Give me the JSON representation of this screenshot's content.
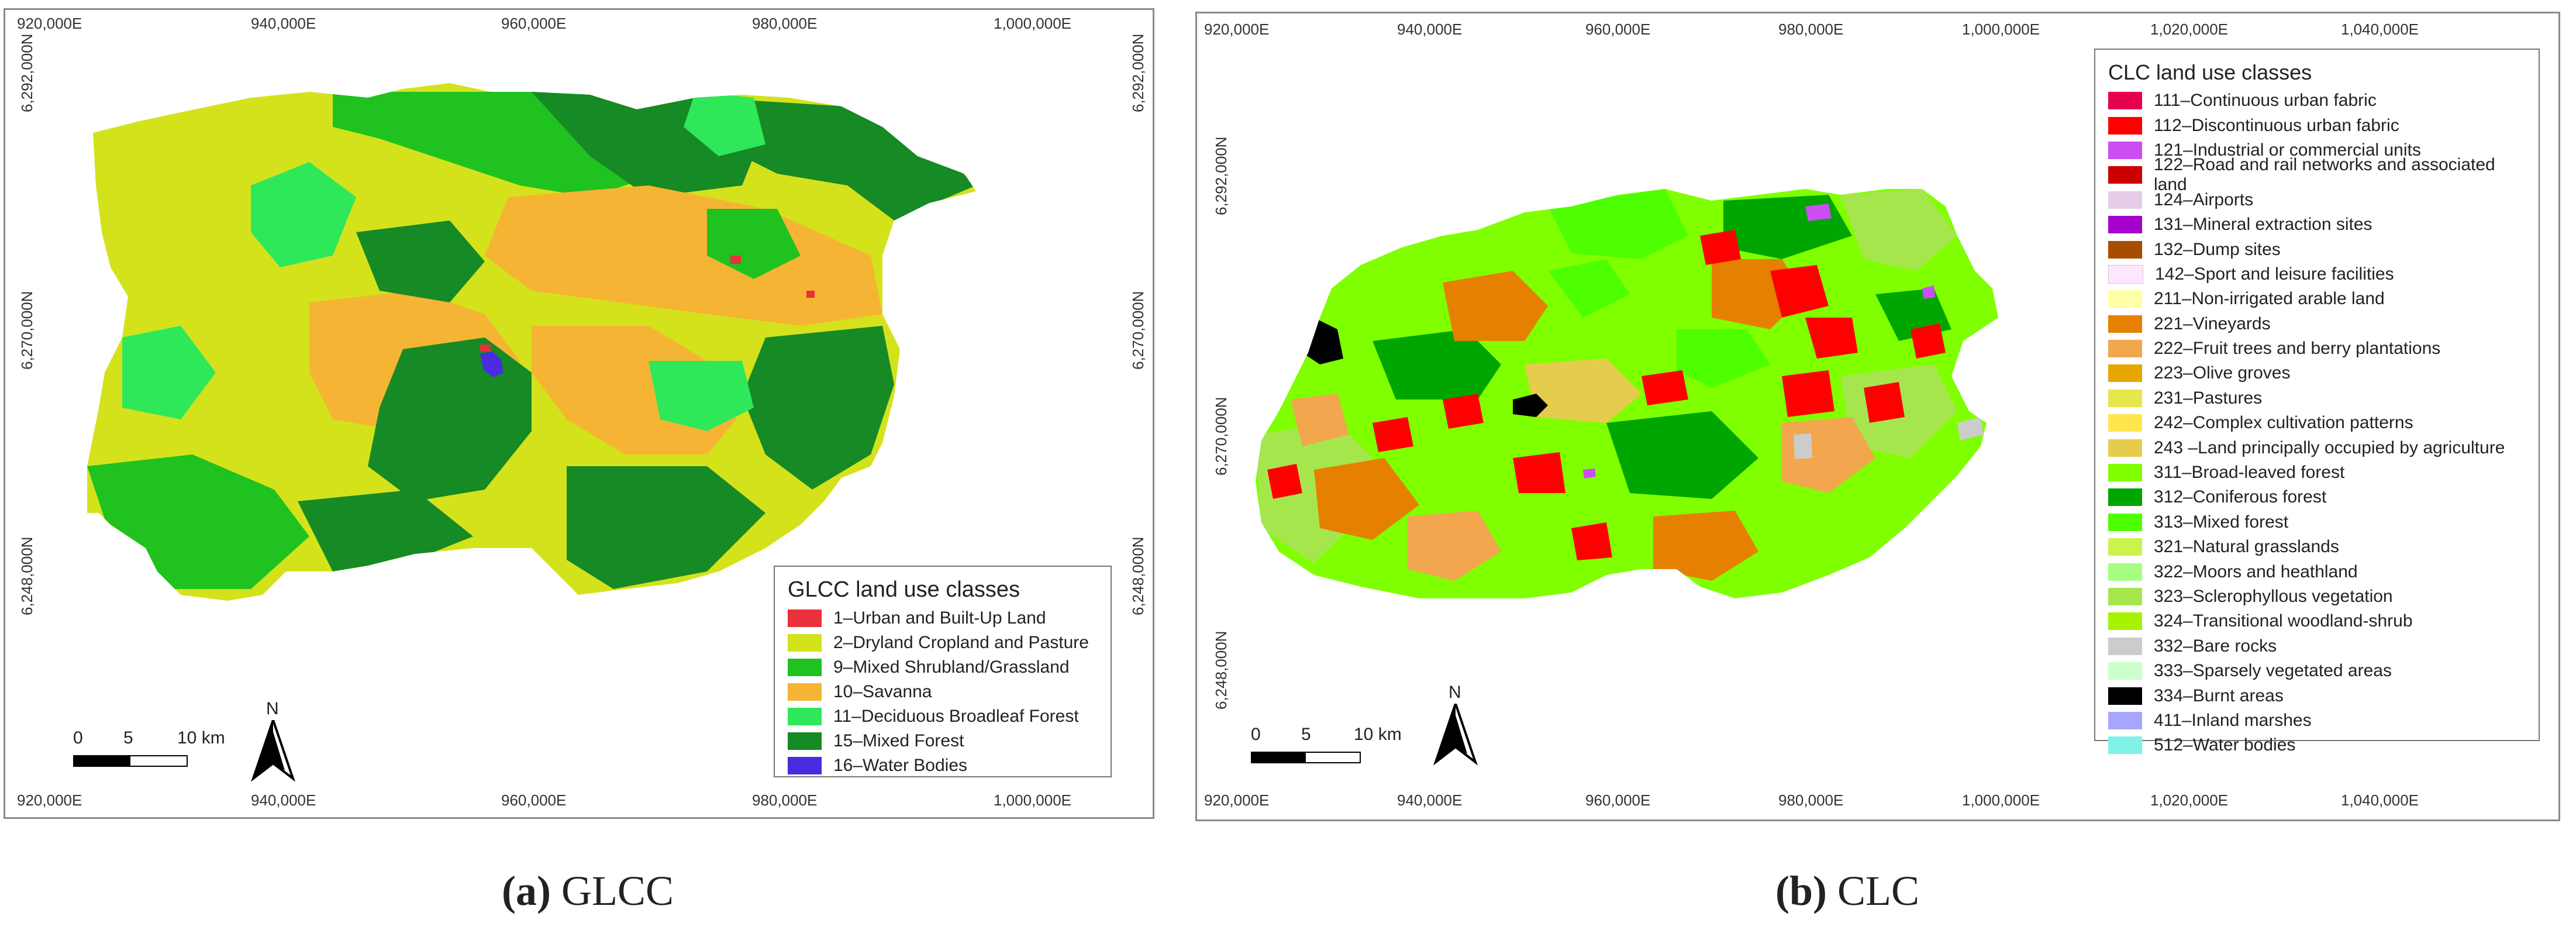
{
  "panel_a": {
    "x_ticks": [
      "920,000E",
      "940,000E",
      "960,000E",
      "980,000E",
      "1,000,000E"
    ],
    "y_ticks": [
      "6,292,000N",
      "6,270,000N",
      "6,248,000N"
    ],
    "legend_title": "GLCC land use classes",
    "legend": [
      {
        "label": "1–Urban and Built-Up Land",
        "color": "#e8313a"
      },
      {
        "label": "2–Dryland Cropland and Pasture",
        "color": "#d4e21c"
      },
      {
        "label": "9–Mixed Shrubland/Grassland",
        "color": "#1fc21f"
      },
      {
        "label": "10–Savanna",
        "color": "#f5b433"
      },
      {
        "label": "11–Deciduous Broadleaf Forest",
        "color": "#2ee85a"
      },
      {
        "label": "15–Mixed Forest",
        "color": "#168a24"
      },
      {
        "label": "16–Water Bodies",
        "color": "#4a2be0"
      }
    ],
    "scale": {
      "zero": "0",
      "mid": "5",
      "end": "10 km"
    },
    "north": "N"
  },
  "panel_b": {
    "x_ticks": [
      "920,000E",
      "940,000E",
      "960,000E",
      "980,000E",
      "1,000,000E",
      "1,020,000E",
      "1,040,000E"
    ],
    "y_ticks": [
      "6,292,000N",
      "6,270,000N",
      "6,248,000N"
    ],
    "legend_title": "CLC land use classes",
    "legend": [
      {
        "label": "111–Continuous urban fabric",
        "color": "#e6004d"
      },
      {
        "label": "112–Discontinuous urban fabric",
        "color": "#ff0000"
      },
      {
        "label": "121–Industrial or commercial units",
        "color": "#cc4df2"
      },
      {
        "label": "122–Road and rail networks and associated land",
        "color": "#cc0000"
      },
      {
        "label": "124–Airports",
        "color": "#e6cce6"
      },
      {
        "label": "131–Mineral extraction sites",
        "color": "#a600cc"
      },
      {
        "label": "132–Dump sites",
        "color": "#a64d00"
      },
      {
        "label": "142–Sport and leisure facilities",
        "color": "#ffe6ff"
      },
      {
        "label": "211–Non-irrigated arable land",
        "color": "#ffffa8"
      },
      {
        "label": "221–Vineyards",
        "color": "#e68000"
      },
      {
        "label": "222–Fruit trees and berry plantations",
        "color": "#f2a64d"
      },
      {
        "label": "223–Olive groves",
        "color": "#e6a600"
      },
      {
        "label": "231–Pastures",
        "color": "#e6e64d"
      },
      {
        "label": "242–Complex cultivation patterns",
        "color": "#ffe64d"
      },
      {
        "label": "243 –Land principally occupied by agriculture",
        "color": "#e6cc4d"
      },
      {
        "label": "311–Broad-leaved forest",
        "color": "#80ff00"
      },
      {
        "label": "312–Coniferous forest",
        "color": "#00a600"
      },
      {
        "label": "313–Mixed forest",
        "color": "#4dff00"
      },
      {
        "label": "321–Natural grasslands",
        "color": "#ccf24d"
      },
      {
        "label": "322–Moors and heathland",
        "color": "#a6ff80"
      },
      {
        "label": "323–Sclerophyllous vegetation",
        "color": "#a6e64d"
      },
      {
        "label": "324–Transitional woodland-shrub",
        "color": "#a6f200"
      },
      {
        "label": "332–Bare rocks",
        "color": "#cccccc"
      },
      {
        "label": "333–Sparsely vegetated areas",
        "color": "#ccffcc"
      },
      {
        "label": "334–Burnt areas",
        "color": "#000000"
      },
      {
        "label": "411–Inland marshes",
        "color": "#a6a6ff"
      },
      {
        "label": "512–Water bodies",
        "color": "#80f2e6"
      }
    ],
    "scale": {
      "zero": "0",
      "mid": "5",
      "end": "10 km"
    },
    "north": "N"
  },
  "captions": {
    "a_letter": "(a)",
    "a_text": " GLCC",
    "b_letter": "(b)",
    "b_text": " CLC"
  }
}
